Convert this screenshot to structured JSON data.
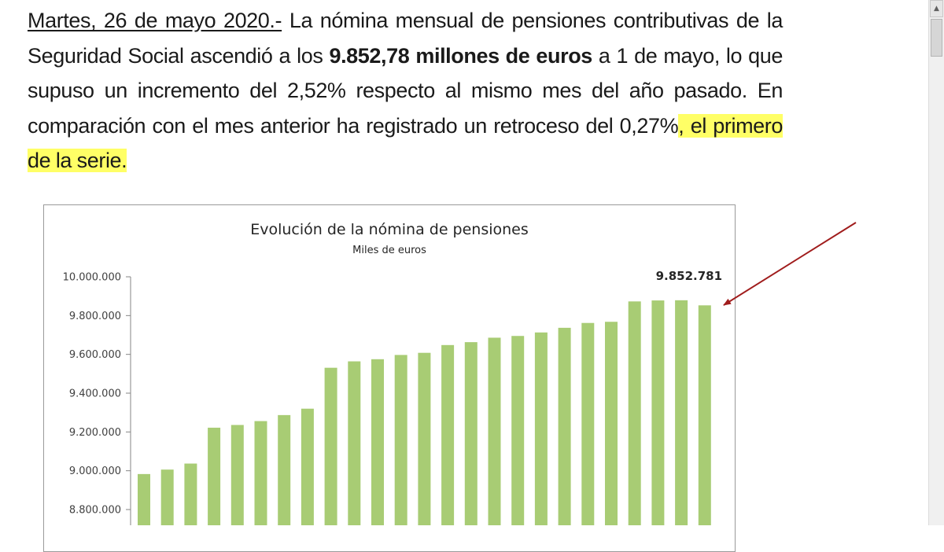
{
  "document": {
    "date": "Martes, 26 de mayo 2020.-",
    "text_1": " La nómina mensual de pensiones contributivas de la Seguridad Social ascendió a los ",
    "bold_amount": "9.852,78 millones de euros",
    "text_2": " a 1 de mayo, lo que supuso un incremento del 2,52% respecto al mismo mes del año pasado. En comparación con el mes anterior ha registrado un retroceso del 0,27%",
    "highlighted": ", el primero de la serie."
  },
  "chart_data": {
    "type": "bar",
    "title": "Evolución de la nómina de pensiones",
    "subtitle": "Miles de euros",
    "ylim": [
      8800000,
      10000000
    ],
    "yticks": [
      "10.000.000",
      "9.800.000",
      "9.600.000",
      "9.400.000",
      "9.200.000",
      "9.000.000",
      "8.800.000"
    ],
    "ytick_values": [
      10000000,
      9800000,
      9600000,
      9400000,
      9200000,
      9000000,
      8800000
    ],
    "values": [
      8983000,
      9006000,
      9037000,
      9222000,
      9236000,
      9256000,
      9287000,
      9320000,
      9531000,
      9564000,
      9575000,
      9597000,
      9608000,
      9648000,
      9663000,
      9686000,
      9695000,
      9713000,
      9737000,
      9762000,
      9768000,
      9873000,
      9878000,
      9879000,
      9852781
    ],
    "bar_color": "#a8cc74",
    "data_label": "9.852.781",
    "grid": false,
    "annotation_arrow_color": "#a01c1c"
  },
  "scrollbar": {
    "up_glyph": "▲"
  }
}
